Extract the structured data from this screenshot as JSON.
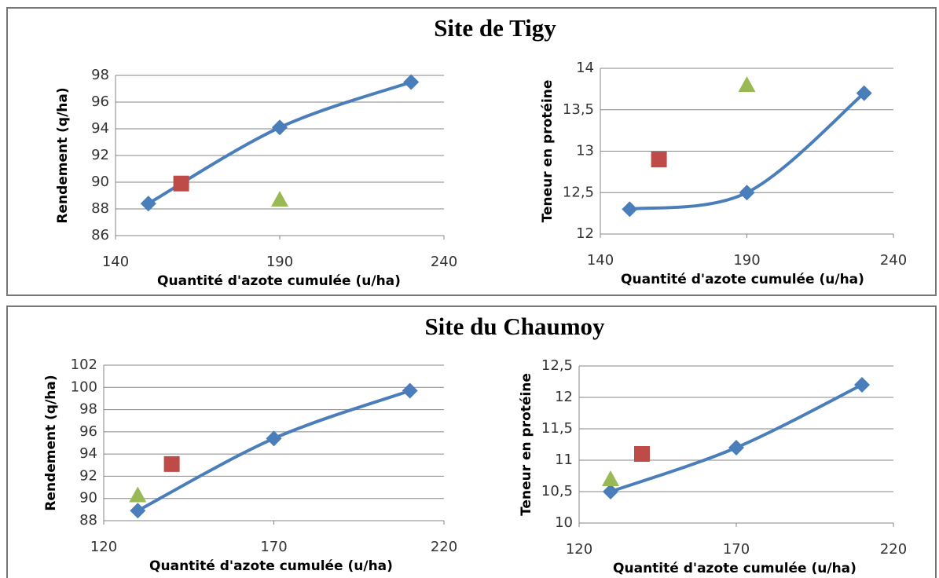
{
  "panel_titles": [
    "Site de Tigy",
    "Site du Chaumoy"
  ],
  "chart_data": [
    {
      "type": "line",
      "x_label": "Quantité d'azote cumulée (u/ha)",
      "y_label": "Rendement (q/ha)",
      "xlim": [
        140,
        240
      ],
      "xticks": [
        140,
        190,
        240
      ],
      "ylim": [
        86,
        98
      ],
      "yticks": [
        86,
        88,
        90,
        92,
        94,
        96,
        98
      ],
      "grid": true,
      "series": [
        {
          "color": "#4a7ebb",
          "marker": "diamond",
          "line": true,
          "x": [
            150,
            190,
            230
          ],
          "values": [
            88.4,
            94.1,
            97.5
          ]
        },
        {
          "color": "#be4b48",
          "marker": "square",
          "line": false,
          "x": [
            160
          ],
          "values": [
            89.9
          ]
        },
        {
          "color": "#98b954",
          "marker": "triangle",
          "line": false,
          "x": [
            190
          ],
          "values": [
            88.7
          ]
        }
      ]
    },
    {
      "type": "line",
      "x_label": "Quantité d'azote cumulée (u/ha)",
      "y_label": "Teneur en protéine",
      "xlim": [
        140,
        240
      ],
      "xticks": [
        140,
        190,
        240
      ],
      "ylim": [
        12,
        14
      ],
      "yticks": [
        12,
        {
          "value": 12.5,
          "label": "12,5"
        },
        13,
        {
          "value": 13.5,
          "label": "13,5"
        },
        14
      ],
      "grid": true,
      "series": [
        {
          "color": "#4a7ebb",
          "marker": "diamond",
          "line": true,
          "x": [
            150,
            190,
            230
          ],
          "values": [
            12.3,
            12.5,
            13.7
          ]
        },
        {
          "color": "#be4b48",
          "marker": "square",
          "line": false,
          "x": [
            160
          ],
          "values": [
            12.9
          ]
        },
        {
          "color": "#98b954",
          "marker": "triangle",
          "line": false,
          "x": [
            190
          ],
          "values": [
            13.8
          ]
        }
      ]
    },
    {
      "type": "line",
      "x_label": "Quantité d'azote cumulée (u/ha)",
      "y_label": "Rendement (q/ha)",
      "xlim": [
        120,
        220
      ],
      "xticks": [
        120,
        170,
        220
      ],
      "ylim": [
        88,
        102
      ],
      "yticks": [
        88,
        90,
        92,
        94,
        96,
        98,
        100,
        102
      ],
      "grid": true,
      "series": [
        {
          "color": "#4a7ebb",
          "marker": "diamond",
          "line": true,
          "x": [
            130,
            170,
            210
          ],
          "values": [
            88.9,
            95.4,
            99.7
          ]
        },
        {
          "color": "#be4b48",
          "marker": "square",
          "line": false,
          "x": [
            140
          ],
          "values": [
            93.1
          ]
        },
        {
          "color": "#98b954",
          "marker": "triangle",
          "line": false,
          "x": [
            130
          ],
          "values": [
            90.3
          ]
        }
      ]
    },
    {
      "type": "line",
      "x_label": "Quantité d'azote cumulée (u/ha)",
      "y_label": "Teneur en protéine",
      "xlim": [
        120,
        220
      ],
      "xticks": [
        120,
        170,
        220
      ],
      "ylim": [
        10,
        12.5
      ],
      "yticks": [
        10,
        {
          "value": 10.5,
          "label": "10,5"
        },
        11,
        {
          "value": 11.5,
          "label": "11,5"
        },
        12,
        {
          "value": 12.5,
          "label": "12,5"
        }
      ],
      "grid": true,
      "series": [
        {
          "color": "#4a7ebb",
          "marker": "diamond",
          "line": true,
          "x": [
            130,
            170,
            210
          ],
          "values": [
            10.5,
            11.2,
            12.2
          ]
        },
        {
          "color": "#be4b48",
          "marker": "square",
          "line": false,
          "x": [
            140
          ],
          "values": [
            11.1
          ]
        },
        {
          "color": "#98b954",
          "marker": "triangle",
          "line": false,
          "x": [
            130
          ],
          "values": [
            10.7
          ]
        }
      ]
    }
  ]
}
